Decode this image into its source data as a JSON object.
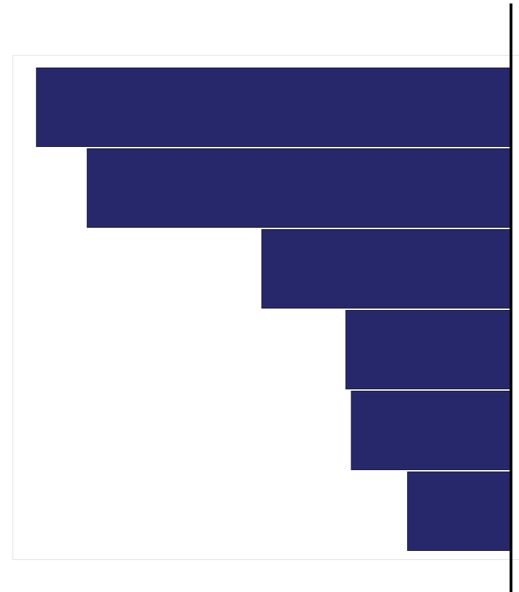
{
  "chart_data": {
    "type": "barh",
    "categories": [
      null,
      null,
      null,
      null,
      null,
      null
    ],
    "values": [
      95.2,
      85.0,
      49.9,
      33.0,
      31.9,
      20.6
    ],
    "color": "#27286b",
    "xlim": [
      0,
      100
    ],
    "x_inverted": true
  }
}
